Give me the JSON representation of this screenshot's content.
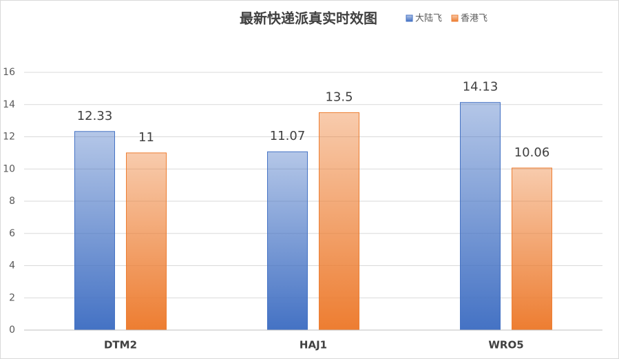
{
  "chart_data": {
    "type": "bar",
    "title": "最新快递派真实时效图",
    "categories": [
      "DTM2",
      "HAJ1",
      "WRO5"
    ],
    "series": [
      {
        "name": "大陆飞",
        "color": "#4472c4",
        "values": [
          12.33,
          11.07,
          14.13
        ]
      },
      {
        "name": "香港飞",
        "color": "#ed7d31",
        "values": [
          11,
          13.5,
          10.06
        ]
      }
    ],
    "ylim": [
      0,
      16
    ],
    "yticks": [
      0,
      2,
      4,
      6,
      8,
      10,
      12,
      14,
      16
    ],
    "grid": true,
    "legend": "top"
  }
}
